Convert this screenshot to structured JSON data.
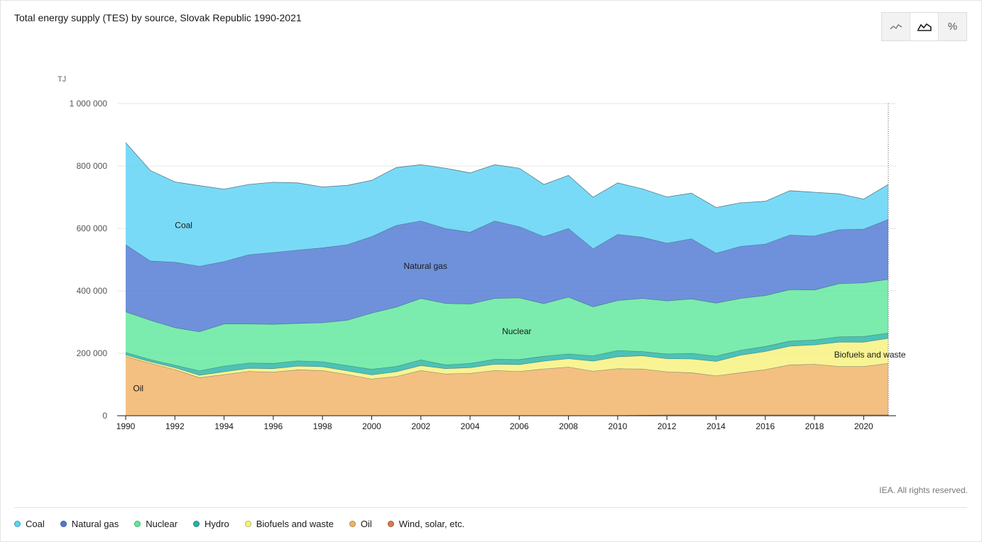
{
  "header": {
    "title": "Total energy supply (TES) by source, Slovak Republic 1990-2021"
  },
  "toolbar": {
    "buttons": [
      {
        "name": "line-chart-button",
        "icon": "line-chart-icon",
        "active": false
      },
      {
        "name": "area-chart-button",
        "icon": "area-chart-icon",
        "active": true
      },
      {
        "name": "percent-button",
        "icon": "percent-icon",
        "label": "%",
        "active": false
      }
    ]
  },
  "footer": {
    "copyright": "IEA. All rights reserved."
  },
  "legend": [
    {
      "label": "Coal",
      "color": "#5bd2f5"
    },
    {
      "label": "Natural gas",
      "color": "#4f79d3"
    },
    {
      "label": "Nuclear",
      "color": "#5ee89c"
    },
    {
      "label": "Hydro",
      "color": "#26b5a6"
    },
    {
      "label": "Biofuels and waste",
      "color": "#f6f27c"
    },
    {
      "label": "Oil",
      "color": "#f0b266"
    },
    {
      "label": "Wind, solar, etc.",
      "color": "#d77c4c"
    }
  ],
  "chart_data": {
    "type": "area",
    "stacked": true,
    "title": "Total energy supply (TES) by source, Slovak Republic 1990-2021",
    "ylabel": "TJ",
    "xlabel": "",
    "ylim": [
      0,
      1000000
    ],
    "yticks": [
      0,
      200000,
      400000,
      600000,
      800000,
      1000000
    ],
    "ytick_labels": [
      "0",
      "200 000",
      "400 000",
      "600 000",
      "800 000",
      "1 000 000"
    ],
    "xticks": [
      1990,
      1992,
      1994,
      1996,
      1998,
      2000,
      2002,
      2004,
      2006,
      2008,
      2010,
      2012,
      2014,
      2016,
      2018,
      2020
    ],
    "xtick_labels": [
      "1990",
      "1992",
      "1994",
      "1996",
      "1998",
      "2000",
      "2002",
      "2004",
      "2006",
      "2008",
      "2010",
      "2012",
      "2014",
      "2016",
      "2018",
      "2020"
    ],
    "x": [
      1990,
      1991,
      1992,
      1993,
      1994,
      1995,
      1996,
      1997,
      1998,
      1999,
      2000,
      2001,
      2002,
      2003,
      2004,
      2005,
      2006,
      2007,
      2008,
      2009,
      2010,
      2011,
      2012,
      2013,
      2014,
      2015,
      2016,
      2017,
      2018,
      2019,
      2020,
      2021
    ],
    "series": [
      {
        "name": "Wind, solar, etc.",
        "color": "#d77c4c",
        "values": [
          0,
          0,
          0,
          0,
          0,
          0,
          0,
          0,
          0,
          0,
          0,
          0,
          0,
          0,
          0,
          0,
          0,
          0,
          0,
          0,
          1000,
          2000,
          3000,
          3000,
          3000,
          3000,
          3000,
          3000,
          3000,
          3000,
          3000,
          3000
        ]
      },
      {
        "name": "Oil",
        "color": "#f0b266",
        "values": [
          190000,
          168000,
          148000,
          122000,
          132000,
          142000,
          140000,
          147000,
          145000,
          132000,
          118000,
          126000,
          145000,
          134000,
          136000,
          145000,
          142000,
          150000,
          156000,
          143000,
          150000,
          148000,
          138000,
          135000,
          125000,
          135000,
          145000,
          160000,
          162000,
          155000,
          155000,
          165000
        ]
      },
      {
        "name": "Biofuels and waste",
        "color": "#f6f27c",
        "values": [
          5000,
          5000,
          6000,
          8000,
          9000,
          10000,
          11000,
          12000,
          12000,
          12000,
          13000,
          15000,
          16000,
          17000,
          18000,
          20000,
          22000,
          25000,
          27000,
          32000,
          38000,
          42000,
          42000,
          44000,
          46000,
          56000,
          58000,
          60000,
          62000,
          78000,
          78000,
          80000
        ]
      },
      {
        "name": "Hydro",
        "color": "#26b5a6",
        "values": [
          8000,
          7000,
          8000,
          14000,
          18000,
          17000,
          17000,
          17000,
          16000,
          17000,
          18000,
          17000,
          18000,
          12000,
          14000,
          16000,
          16000,
          16000,
          15000,
          17000,
          20000,
          14000,
          15000,
          18000,
          17000,
          16000,
          16000,
          16000,
          16000,
          17000,
          18000,
          17000
        ]
      },
      {
        "name": "Nuclear",
        "color": "#5ee89c",
        "values": [
          130000,
          126000,
          120000,
          125000,
          135000,
          125000,
          125000,
          120000,
          125000,
          145000,
          180000,
          190000,
          197000,
          197000,
          190000,
          195000,
          198000,
          168000,
          182000,
          157000,
          160000,
          170000,
          170000,
          174000,
          170000,
          166000,
          163000,
          165000,
          160000,
          170000,
          172000,
          172000
        ]
      },
      {
        "name": "Natural gas",
        "color": "#4f79d3",
        "values": [
          215000,
          190000,
          210000,
          210000,
          200000,
          222000,
          230000,
          235000,
          240000,
          242000,
          245000,
          262000,
          248000,
          240000,
          230000,
          248000,
          228000,
          215000,
          220000,
          186000,
          212000,
          196000,
          185000,
          193000,
          160000,
          167000,
          165000,
          175000,
          173000,
          173000,
          172000,
          192000
        ]
      },
      {
        "name": "Coal",
        "color": "#5bd2f5",
        "values": [
          327000,
          290000,
          257000,
          258000,
          232000,
          225000,
          225000,
          215000,
          195000,
          190000,
          180000,
          185000,
          180000,
          193000,
          190000,
          180000,
          187000,
          167000,
          170000,
          165000,
          165000,
          155000,
          148000,
          146000,
          146000,
          139000,
          137000,
          142000,
          140000,
          115000,
          96000,
          112000
        ]
      }
    ],
    "area_labels": [
      {
        "text": "Coal",
        "series": "Coal",
        "x": 1992,
        "y": 610000
      },
      {
        "text": "Natural gas",
        "series": "Natural gas",
        "x": 2001.3,
        "y": 480000
      },
      {
        "text": "Nuclear",
        "series": "Nuclear",
        "x": 2005.3,
        "y": 270000
      },
      {
        "text": "Biofuels and waste",
        "series": "Biofuels and waste",
        "x": 2018.8,
        "y": 195000
      },
      {
        "text": "Oil",
        "series": "Oil",
        "x": 1990.3,
        "y": 87000
      }
    ],
    "hover_line_year": 2021,
    "grid": true
  }
}
